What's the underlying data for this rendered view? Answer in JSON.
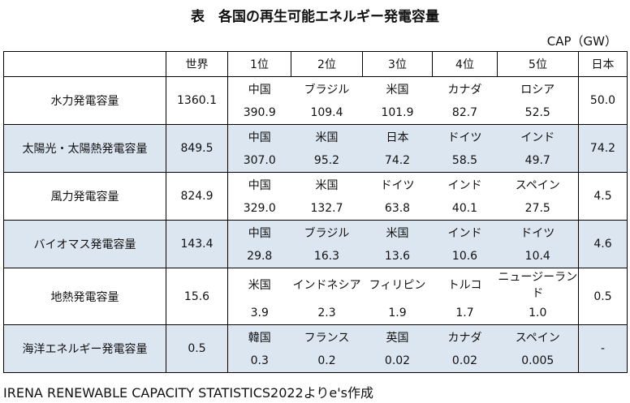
{
  "title": "表　各国の再生可能エネルギー発電容量",
  "unit": "CAP（GW）",
  "headers": [
    "",
    "世界",
    "1位",
    "2位",
    "3位",
    "4位",
    "5位",
    "日本"
  ],
  "rows": [
    {
      "category": "水力発電容量",
      "world": "1360.1",
      "countries": [
        "中国",
        "ブラジル",
        "米国",
        "カナダ",
        "ロシア"
      ],
      "values": [
        "390.9",
        "109.4",
        "101.9",
        "82.7",
        "52.5"
      ],
      "japan": "50.0"
    },
    {
      "category": "太陽光・太陽熱発電容量",
      "world": "849.5",
      "countries": [
        "中国",
        "米国",
        "日本",
        "ドイツ",
        "インド"
      ],
      "values": [
        "307.0",
        "95.2",
        "74.2",
        "58.5",
        "49.7"
      ],
      "japan": "74.2"
    },
    {
      "category": "風力発電容量",
      "world": "824.9",
      "countries": [
        "中国",
        "米国",
        "ドイツ",
        "インド",
        "スペイン"
      ],
      "values": [
        "329.0",
        "132.7",
        "63.8",
        "40.1",
        "27.5"
      ],
      "japan": "4.5"
    },
    {
      "category": "バイオマス発電容量",
      "world": "143.4",
      "countries": [
        "中国",
        "ブラジル",
        "米国",
        "インド",
        "ドイツ"
      ],
      "values": [
        "29.8",
        "16.3",
        "13.6",
        "10.6",
        "10.4"
      ],
      "japan": "4.6"
    },
    {
      "category": "地熱発電容量",
      "world": "15.6",
      "countries": [
        "米国",
        "インドネシア",
        "フィリピン",
        "トルコ",
        "ニュージーランド"
      ],
      "values": [
        "3.9",
        "2.3",
        "1.9",
        "1.7",
        "1.0"
      ],
      "japan": "0.5"
    },
    {
      "category": "海洋エネルギー発電容量",
      "world": "0.5",
      "countries": [
        "韓国",
        "フランス",
        "英国",
        "カナダ",
        "スペイン"
      ],
      "values": [
        "0.3",
        "0.2",
        "0.02",
        "0.02",
        "0.005"
      ],
      "japan": "-"
    }
  ],
  "footer": "IRENA RENEWABLE CAPACITY STATISTICS2022よりe's作成",
  "colors": {
    "shaded_row": "#dce6f1",
    "border": "#000000"
  }
}
